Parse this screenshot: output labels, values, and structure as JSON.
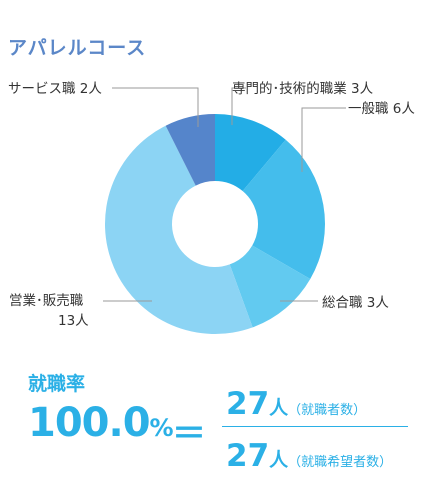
{
  "chart_data": {
    "type": "pie",
    "title": "アパレルコース",
    "slices": [
      {
        "label": "専門的・技術的職業",
        "value": 3,
        "display": "専門的･技術的職業 3人",
        "color": "#23ade6"
      },
      {
        "label": "一般職",
        "value": 6,
        "display": "一般職 6人",
        "color": "#44bdec"
      },
      {
        "label": "総合職",
        "value": 3,
        "display": "総合職 3人",
        "color": "#62caf0"
      },
      {
        "label": "営業・販売職",
        "value": 13,
        "display_line1": "営業･販売職",
        "display_line2": "13人",
        "color": "#8cd4f4"
      },
      {
        "label": "サービス職",
        "value": 2,
        "display": "サービス職 2人",
        "color": "#5585cb"
      }
    ]
  },
  "employment": {
    "title": "就職率",
    "rate_number": "100.0",
    "rate_unit": "%",
    "equals": "＝",
    "employed_count": "27",
    "employed_unit": "人",
    "employed_label": "（就職者数）",
    "applicants_count": "27",
    "applicants_unit": "人",
    "applicants_label": "（就職希望者数）"
  }
}
